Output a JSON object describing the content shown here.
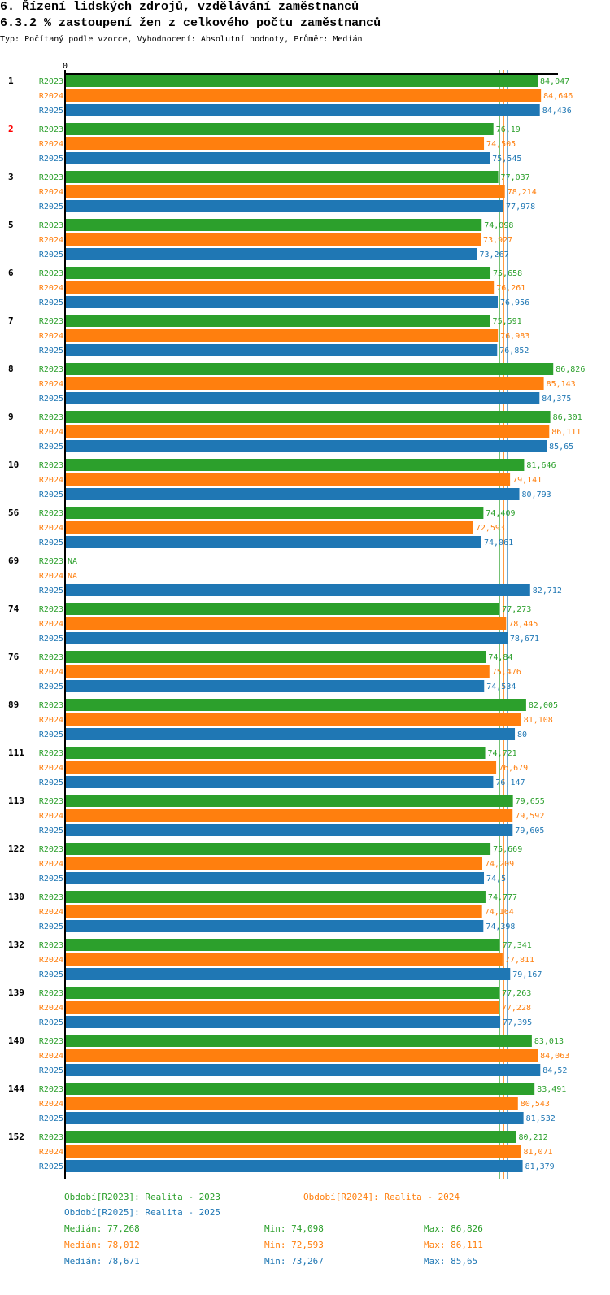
{
  "title": "6. Řízení lidských zdrojů, vzdělávání zaměstnanců",
  "subtitle": "6.3.2 % zastoupení žen z celkového počtu zaměstnanců",
  "type_line": "Typ: Počítaný podle vzorce, Vyhodnocení: Absolutní hodnoty, Průměr: Medián",
  "chart_data": {
    "type": "bar",
    "orientation": "horizontal",
    "axis_zero_label": "0",
    "xlim": [
      0,
      87.7
    ],
    "series_names": [
      "R2023",
      "R2024",
      "R2025"
    ],
    "colors": [
      "#2ca02c",
      "#ff7f0e",
      "#1f77b4"
    ],
    "highlight_color": "#ff0000",
    "categories": [
      {
        "label": "1",
        "values": [
          "84,047",
          "84,646",
          "84,436"
        ]
      },
      {
        "label": "2",
        "highlight": true,
        "values": [
          "76,19",
          "74,505",
          "75,545"
        ]
      },
      {
        "label": "3",
        "values": [
          "77,037",
          "78,214",
          "77,978"
        ]
      },
      {
        "label": "5",
        "values": [
          "74,098",
          "73,927",
          "73,267"
        ]
      },
      {
        "label": "6",
        "values": [
          "75,658",
          "76,261",
          "76,956"
        ]
      },
      {
        "label": "7",
        "values": [
          "75,591",
          "76,983",
          "76,852"
        ]
      },
      {
        "label": "8",
        "values": [
          "86,826",
          "85,143",
          "84,375"
        ]
      },
      {
        "label": "9",
        "values": [
          "86,301",
          "86,111",
          "85,65"
        ]
      },
      {
        "label": "10",
        "values": [
          "81,646",
          "79,141",
          "80,793"
        ]
      },
      {
        "label": "56",
        "values": [
          "74,409",
          "72,593",
          "74,061"
        ]
      },
      {
        "label": "69",
        "values": [
          "NA",
          "NA",
          "82,712"
        ]
      },
      {
        "label": "74",
        "values": [
          "77,273",
          "78,445",
          "78,671"
        ]
      },
      {
        "label": "76",
        "values": [
          "74,84",
          "75,476",
          "74,534"
        ]
      },
      {
        "label": "89",
        "values": [
          "82,005",
          "81,108",
          "80"
        ]
      },
      {
        "label": "111",
        "values": [
          "74,721",
          "76,679",
          "76,147"
        ]
      },
      {
        "label": "113",
        "values": [
          "79,655",
          "79,592",
          "79,605"
        ]
      },
      {
        "label": "122",
        "values": [
          "75,669",
          "74,209",
          "74,5"
        ]
      },
      {
        "label": "130",
        "values": [
          "74,777",
          "74,164",
          "74,398"
        ]
      },
      {
        "label": "132",
        "values": [
          "77,341",
          "77,811",
          "79,167"
        ]
      },
      {
        "label": "139",
        "values": [
          "77,263",
          "77,228",
          "77,395"
        ]
      },
      {
        "label": "140",
        "values": [
          "83,013",
          "84,063",
          "84,52"
        ]
      },
      {
        "label": "144",
        "values": [
          "83,491",
          "80,543",
          "81,532"
        ]
      },
      {
        "label": "152",
        "values": [
          "80,212",
          "81,071",
          "81,379"
        ]
      }
    ],
    "medians": [
      77.268,
      78.012,
      78.671
    ]
  },
  "legend": {
    "periods": [
      "Období[R2023]: Realita - 2023",
      "Období[R2024]: Realita - 2024",
      "Období[R2025]: Realita - 2025"
    ],
    "stats": [
      {
        "median": "Medián: 77,268",
        "min": "Min: 74,098",
        "max": "Max: 86,826"
      },
      {
        "median": "Medián: 78,012",
        "min": "Min: 72,593",
        "max": "Max: 86,111"
      },
      {
        "median": "Medián: 78,671",
        "min": "Min: 73,267",
        "max": "Max: 85,65"
      }
    ]
  }
}
